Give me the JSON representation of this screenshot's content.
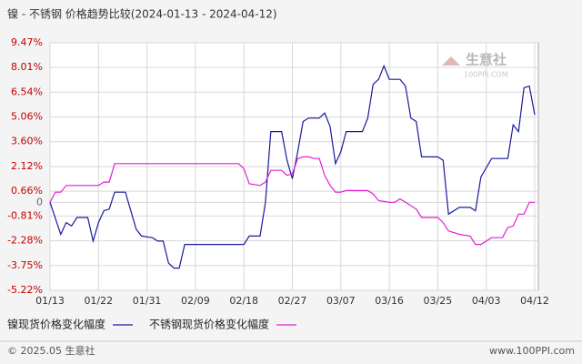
{
  "chart_data": {
    "type": "line",
    "title": "镍 - 不锈钢 价格趋势比较(2024-01-13 - 2024-04-12)",
    "x": [
      "01/13",
      "01/14",
      "01/15",
      "01/16",
      "01/17",
      "01/18",
      "01/20",
      "01/21",
      "01/22",
      "01/23",
      "01/24",
      "01/25",
      "01/27",
      "01/29",
      "01/30",
      "02/01",
      "02/02",
      "02/03",
      "02/04",
      "02/05",
      "02/06",
      "02/07",
      "02/17",
      "02/18",
      "02/19",
      "02/21",
      "02/22",
      "02/23",
      "02/25",
      "02/26",
      "02/27",
      "02/28",
      "02/29",
      "03/01",
      "03/02",
      "03/03",
      "03/04",
      "03/05",
      "03/06",
      "03/07",
      "03/08",
      "03/11",
      "03/12",
      "03/13",
      "03/14",
      "03/15",
      "03/16",
      "03/17",
      "03/18",
      "03/19",
      "03/20",
      "03/21",
      "03/22",
      "03/25",
      "03/26",
      "03/27",
      "03/29",
      "03/31",
      "04/01",
      "04/02",
      "04/04",
      "04/06",
      "04/07",
      "04/08",
      "04/09",
      "04/10",
      "04/11",
      "04/12"
    ],
    "series": [
      {
        "name": "镍现货价格变化幅度",
        "color": "#1a1a9c",
        "values": [
          0,
          -0.95,
          -1.9,
          -1.2,
          -1.4,
          -0.9,
          -0.9,
          -2.3,
          -1.2,
          -0.5,
          -0.4,
          0.6,
          0.6,
          -1.6,
          -2.0,
          -2.1,
          -2.3,
          -2.3,
          -3.6,
          -3.9,
          -3.9,
          -2.5,
          -2.5,
          -2.5,
          -2.0,
          -2.0,
          0,
          4.2,
          4.2,
          2.5,
          1.4,
          3.0,
          4.8,
          5.0,
          5.0,
          5.0,
          5.3,
          4.5,
          2.3,
          3.0,
          4.2,
          4.2,
          5.0,
          7.0,
          7.3,
          8.1,
          7.3,
          7.3,
          7.3,
          6.9,
          5.0,
          4.8,
          2.7,
          2.7,
          2.5,
          -0.7,
          -0.3,
          -0.3,
          -0.5,
          1.5,
          2.6,
          2.6,
          2.6,
          4.6,
          4.2,
          6.8,
          6.9,
          5.2
        ]
      },
      {
        "name": "不锈钢现货价格变化幅度",
        "color": "#e020d0",
        "values": [
          0,
          0.6,
          0.6,
          1.0,
          1.0,
          1.0,
          1.0,
          1.0,
          1.0,
          1.2,
          1.2,
          2.3,
          2.3,
          2.3,
          2.3,
          2.3,
          2.3,
          2.3,
          2.3,
          2.3,
          2.3,
          2.3,
          2.3,
          2.0,
          1.1,
          1.0,
          1.2,
          1.9,
          1.9,
          1.6,
          1.7,
          2.6,
          2.7,
          2.7,
          2.6,
          2.6,
          1.6,
          1.0,
          0.6,
          0.6,
          0.7,
          0.7,
          0.7,
          0.5,
          0.1,
          0.05,
          0,
          0,
          0.2,
          0,
          -0.2,
          -0.4,
          -0.9,
          -0.9,
          -1.2,
          -1.7,
          -1.9,
          -2.0,
          -2.5,
          -2.5,
          -2.1,
          -2.1,
          -1.5,
          -1.4,
          -0.7,
          -0.7,
          0,
          0
        ]
      }
    ],
    "xlim": [
      "01/13",
      "04/12"
    ],
    "xticks": [
      "01/13",
      "01/22",
      "01/31",
      "02/09",
      "02/18",
      "02/27",
      "03/07",
      "03/16",
      "03/25",
      "04/03",
      "04/12"
    ],
    "ylim": [
      -5.22,
      9.47
    ],
    "yticks": [
      {
        "value": 9.47,
        "label": "9.47%"
      },
      {
        "value": 8.01,
        "label": "8.01%"
      },
      {
        "value": 6.54,
        "label": "6.54%"
      },
      {
        "value": 5.06,
        "label": "5.06%"
      },
      {
        "value": 3.6,
        "label": "3.60%"
      },
      {
        "value": 2.12,
        "label": "2.12%"
      },
      {
        "value": 0.66,
        "label": "0.66%"
      },
      0,
      {
        "value": -0.81,
        "label": "-0.81%"
      },
      {
        "value": -2.28,
        "label": "-2.28%"
      },
      {
        "value": -3.75,
        "label": "-3.75%"
      },
      {
        "value": -5.22,
        "label": "-5.22%"
      }
    ],
    "grid": true,
    "watermark": {
      "name": "生意社",
      "site": "100PPI.COM"
    }
  },
  "footer": {
    "copyright": "© 2025.05 生意社",
    "site": "www.100PPI.com"
  }
}
